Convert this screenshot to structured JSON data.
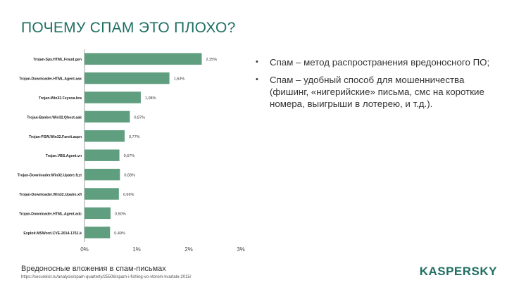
{
  "slide": {
    "title": "ПОЧЕМУ СПАМ ЭТО ПЛОХО?",
    "caption": "Вредоносные вложения в спам-письмах",
    "source": "https://securelist.ru/analysis/spam-quarterly/25506/spam-i-fishing-vo-vtorom-kvartale-2015/",
    "logo": "KASPERSKY"
  },
  "bullets": [
    {
      "marker": "•",
      "text": "Спам – метод распространения вредоносного ПО;"
    },
    {
      "marker": "•",
      "text": "Спам – удобный способ для мошенничества (фишинг, «нигерийские» письма, смс на короткие номера, выигрыши в лотерею, и т.д.)."
    }
  ],
  "colors": {
    "accent": "#1f6f62",
    "bar": "#5f9e7e",
    "text": "#333333"
  },
  "chart_data": {
    "type": "bar",
    "orientation": "horizontal",
    "title": "",
    "xlabel": "",
    "ylabel": "",
    "xlim": [
      0,
      3
    ],
    "x_ticks": [
      "0%",
      "1%",
      "2%",
      "3%"
    ],
    "grid": false,
    "legend": "none",
    "categories": [
      "Trojan-Spy.HTML.Fraud.gen",
      "Trojan-Downloader.HTML.Agent.aax",
      "Trojan.Win32.Fsysna.bra",
      "Trojan-Banker.Win32.Qhost.aak",
      "Trojan-PSW.Win32.Fareit.aupn",
      "Trojan.VBS.Agent.vn",
      "Trojan-Downloader.Win32.Upatre.fzzt",
      "Trojan-Downloader.Win32.Upatre.xfl",
      "Trojan-Downloader.HTML.Agent.adc",
      "Exploit.MSWord.CVE-2014-1761.k"
    ],
    "values": [
      2.25,
      1.63,
      1.08,
      0.87,
      0.77,
      0.67,
      0.68,
      0.66,
      0.5,
      0.49
    ],
    "value_labels": [
      "2,25%",
      "1,63%",
      "1,08%",
      "0,87%",
      "0,77%",
      "0,67%",
      "0,68%",
      "0,66%",
      "0,50%",
      "0,49%"
    ]
  }
}
